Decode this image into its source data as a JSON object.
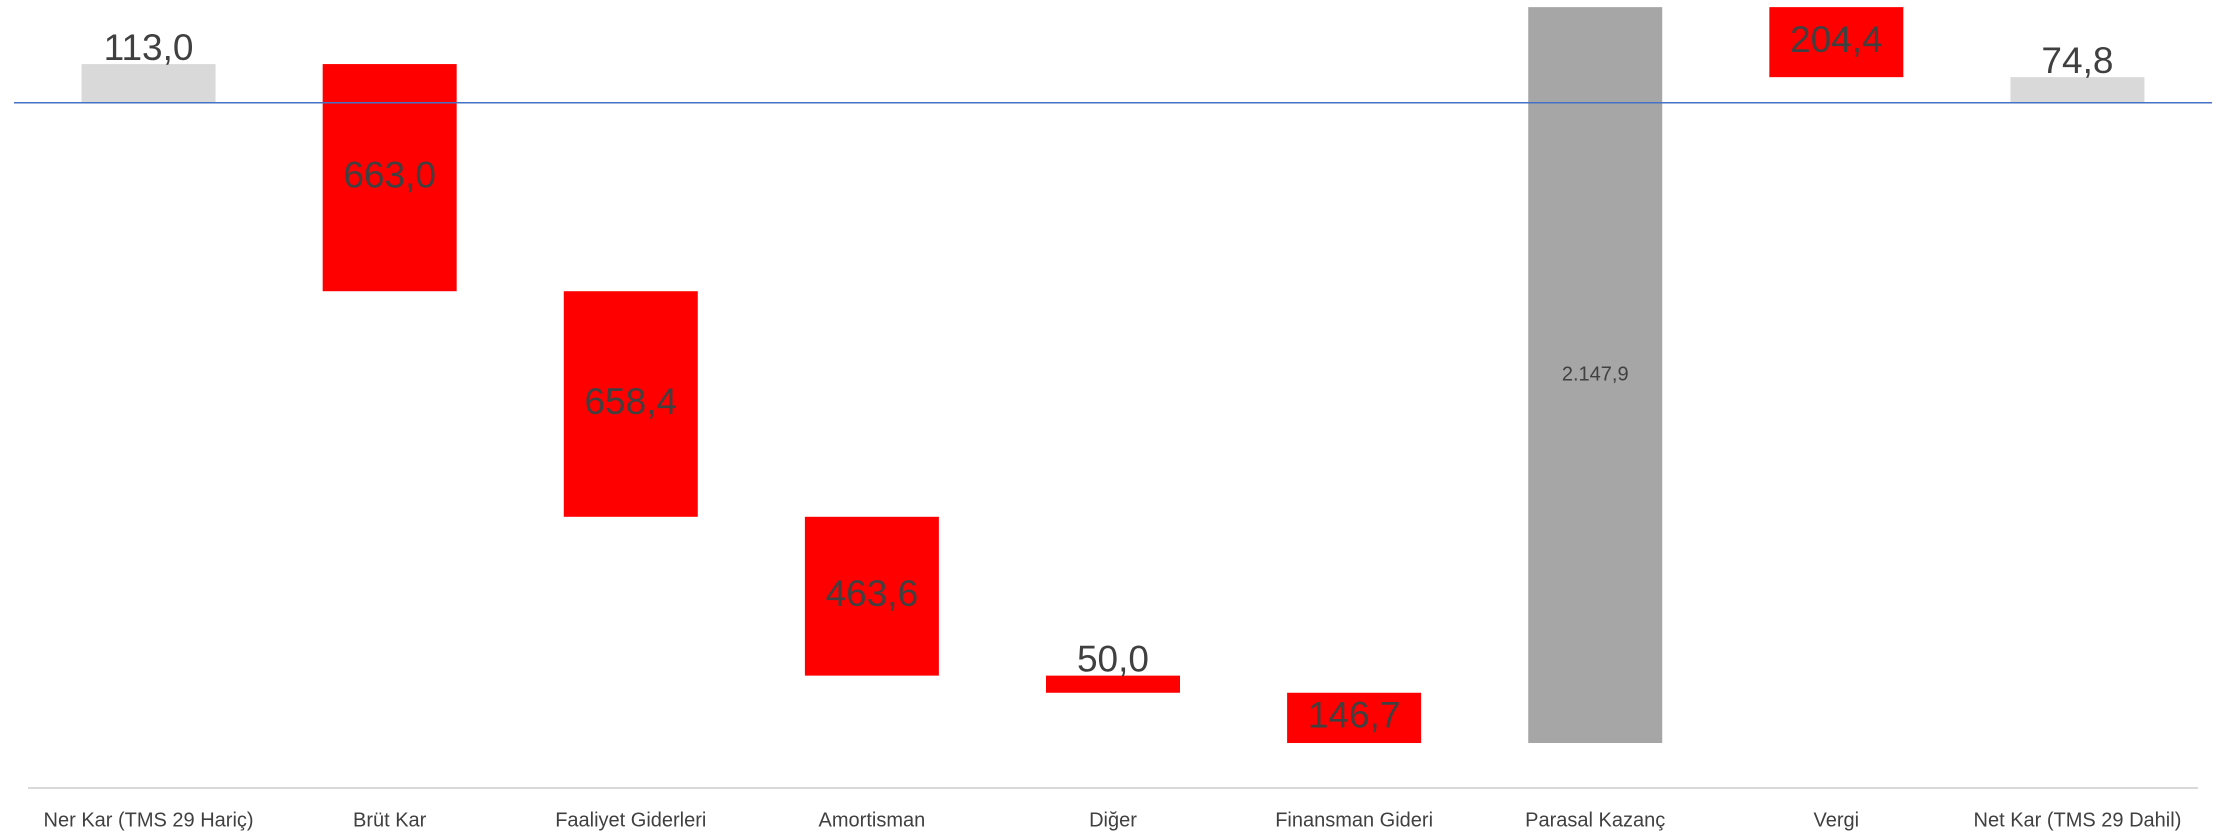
{
  "chart_data": {
    "type": "waterfall",
    "categories": [
      "Ner Kar (TMS 29 Hariç)",
      "Brüt Kar",
      "Faaliyet Giderleri",
      "Amortisman",
      "Diğer",
      "Finansman Gideri",
      "Parasal Kazanç",
      "Vergi",
      "Net Kar (TMS 29 Dahil)"
    ],
    "values": [
      113.0,
      663.0,
      658.4,
      463.6,
      50.0,
      146.7,
      2147.9,
      204.4,
      74.8
    ],
    "value_labels": [
      "113,0",
      "663,0",
      "658,4",
      "463,6",
      "50,0",
      "146,7",
      "2.147,9",
      "204,4",
      "74,8"
    ],
    "steps": [
      "total",
      "decrease",
      "decrease",
      "decrease",
      "decrease",
      "decrease",
      "increase",
      "decrease",
      "total"
    ],
    "colors": [
      "#d9d9d9",
      "#ff0000",
      "#ff0000",
      "#ff0000",
      "#ff0000",
      "#ff0000",
      "#a6a6a6",
      "#ff0000",
      "#d9d9d9"
    ],
    "ylim": [
      -2000,
      300
    ],
    "zero_line_color": "#4472c4"
  }
}
